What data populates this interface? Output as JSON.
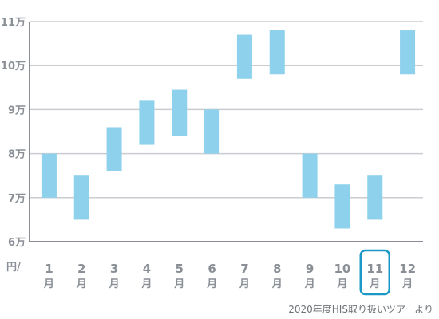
{
  "chart_data": {
    "type": "bar",
    "subtype": "floating-range",
    "unit_label": "円/",
    "y_tick_labels": [
      "6万",
      "7万",
      "8万",
      "9万",
      "10万",
      "11万"
    ],
    "y_tick_values": [
      60000,
      70000,
      80000,
      90000,
      100000,
      110000
    ],
    "ylim": [
      60000,
      110000
    ],
    "grid": true,
    "categories": [
      "1",
      "2",
      "3",
      "4",
      "5",
      "6",
      "7",
      "8",
      "9",
      "10",
      "11",
      "12"
    ],
    "category_unit": "月",
    "series": [
      {
        "low": [
          70000,
          65000,
          76000,
          82000,
          84000,
          80000,
          97000,
          98000,
          70000,
          63000,
          65000,
          98000
        ],
        "high": [
          80000,
          75000,
          86000,
          92000,
          94500,
          90000,
          107000,
          108000,
          80000,
          73000,
          75000,
          108000
        ],
        "color": "#8dd1ec"
      }
    ],
    "highlight_category": "11",
    "highlight_color": "#1a98c8",
    "axis_color": "#8a8f96",
    "grid_color": "#c9ccd0",
    "caption": "2020年度HIS取り扱いツアーより"
  }
}
